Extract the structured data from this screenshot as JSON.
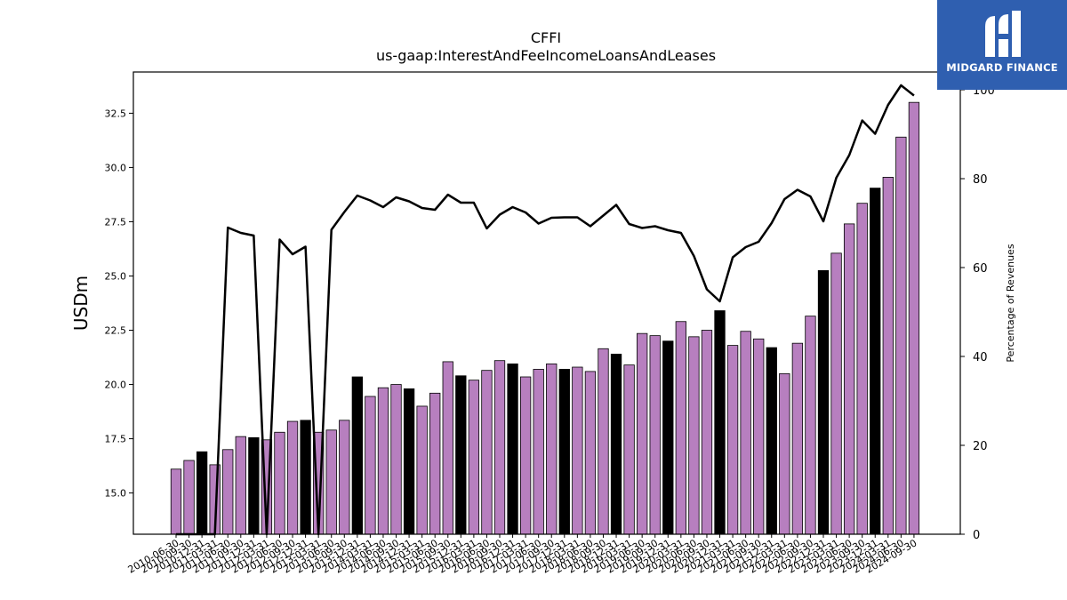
{
  "brand": {
    "name": "MIDGARD FINANCE",
    "logo_icon": "midgard-logo-icon",
    "color": "#2f5fb0"
  },
  "chart_data": {
    "type": "bar",
    "title": "CFFI",
    "subtitle": "us-gaap:InterestAndFeeIncomeLoansAndLeases",
    "ylabel": "USDm",
    "y2label": "Percentage of Revenues",
    "ylim": [
      13.1,
      34.4
    ],
    "y2lim": [
      0,
      104
    ],
    "yticks": [
      "15.0",
      "17.5",
      "20.0",
      "22.5",
      "25.0",
      "27.5",
      "30.0",
      "32.5"
    ],
    "y2ticks": [
      "0",
      "20",
      "40",
      "60",
      "80",
      "100"
    ],
    "colors": {
      "bar_default": "#b77fbf",
      "bar_q4": "#000000",
      "bar_edge": "#000000",
      "line": "#000000"
    },
    "categories": [
      "2010-06-30",
      "2010-09-30",
      "2010-12-31",
      "2011-03-31",
      "2011-06-30",
      "2011-09-30",
      "2011-12-31",
      "2012-03-31",
      "2012-06-30",
      "2012-09-30",
      "2012-12-31",
      "2013-03-31",
      "2013-06-30",
      "2013-09-30",
      "2013-12-31",
      "2014-03-31",
      "2014-06-30",
      "2014-09-30",
      "2014-12-31",
      "2015-03-31",
      "2015-06-30",
      "2015-09-30",
      "2015-12-31",
      "2016-03-31",
      "2016-06-30",
      "2016-09-30",
      "2016-12-31",
      "2017-03-31",
      "2017-06-30",
      "2017-09-30",
      "2017-12-31",
      "2018-03-31",
      "2018-06-30",
      "2018-09-30",
      "2018-12-31",
      "2019-03-31",
      "2019-06-30",
      "2019-09-30",
      "2019-12-31",
      "2020-03-31",
      "2020-06-30",
      "2020-09-30",
      "2020-12-31",
      "2021-03-31",
      "2021-06-30",
      "2021-09-30",
      "2021-12-31",
      "2022-03-31",
      "2022-06-30",
      "2022-09-30",
      "2022-12-31",
      "2023-03-31",
      "2023-06-30",
      "2023-09-30",
      "2023-12-31",
      "2024-03-31",
      "2024-06-30",
      "2024-09-30"
    ],
    "x_tick_labels": [
      "2010-06-30",
      "2010-09-30",
      "2010-12-31",
      "2011-03-31",
      "2011-06-30",
      "2011-09-30",
      "2011-12-31",
      "2012-03-31",
      "2012-06-30",
      "2012-09-30",
      "2012-12-31",
      "2013-03-31",
      "2013-06-30",
      "2013-09-30",
      "2013-12-31",
      "2014-03-31",
      "2014-06-30",
      "2014-09-30",
      "2014-12-31",
      "2015-03-31",
      "2015-06-30",
      "2015-09-30",
      "2015-12-31",
      "2016-03-31",
      "2016-06-30",
      "2016-09-30",
      "2016-12-31",
      "2017-03-31",
      "2017-06-30",
      "2017-09-30",
      "2017-12-31",
      "2018-03-31",
      "2018-06-30",
      "2018-09-30",
      "2018-12-31",
      "2019-03-31",
      "2019-06-30",
      "2019-09-30",
      "2019-12-31",
      "2020-03-31",
      "2020-06-30",
      "2020-09-30",
      "2020-12-31",
      "2021-03-31",
      "2021-06-30",
      "2021-09-30",
      "2021-12-31",
      "2022-03-31",
      "2022-06-30",
      "2022-09-30",
      "2022-12-31",
      "2023-03-31",
      "2023-06-30",
      "2023-09-30",
      "2023-12-31",
      "2024-03-31",
      "2024-06-30",
      "2024-09-30"
    ],
    "series": [
      {
        "type": "bar",
        "axis": "left",
        "values": [
          16.1,
          16.5,
          16.9,
          16.3,
          17.0,
          17.6,
          17.55,
          17.45,
          17.8,
          18.3,
          18.35,
          17.8,
          17.9,
          18.35,
          20.35,
          19.45,
          19.85,
          20.0,
          19.8,
          19.0,
          19.6,
          21.05,
          20.4,
          20.2,
          20.65,
          21.1,
          20.95,
          20.35,
          20.7,
          20.95,
          20.7,
          20.8,
          20.6,
          21.65,
          21.4,
          20.9,
          22.35,
          22.25,
          22.0,
          22.9,
          22.2,
          22.5,
          23.4,
          21.8,
          22.45,
          22.1,
          21.7,
          20.5,
          21.9,
          23.15,
          25.25,
          26.05,
          27.4,
          28.35,
          29.05,
          29.55,
          31.4,
          33.0
        ]
      },
      {
        "type": "line",
        "axis": "right",
        "values": [
          0,
          0,
          0,
          0,
          69,
          67.8,
          67.2,
          0,
          66.3,
          63,
          64.7,
          0,
          68.5,
          72.5,
          76.2,
          75.1,
          73.6,
          75.8,
          74.9,
          73.4,
          73,
          76.4,
          74.6,
          74.6,
          68.8,
          71.9,
          73.6,
          72.4,
          69.9,
          71.2,
          71.3,
          71.3,
          69.3,
          71.7,
          74.1,
          69.8,
          68.9,
          69.3,
          68.4,
          67.8,
          62.6,
          55.1,
          52.4,
          62.3,
          64.6,
          65.8,
          70,
          75.4,
          77.5,
          76,
          70.4,
          80.2,
          85.3,
          93.1,
          90.1,
          96.6,
          101,
          98.7
        ]
      }
    ]
  }
}
